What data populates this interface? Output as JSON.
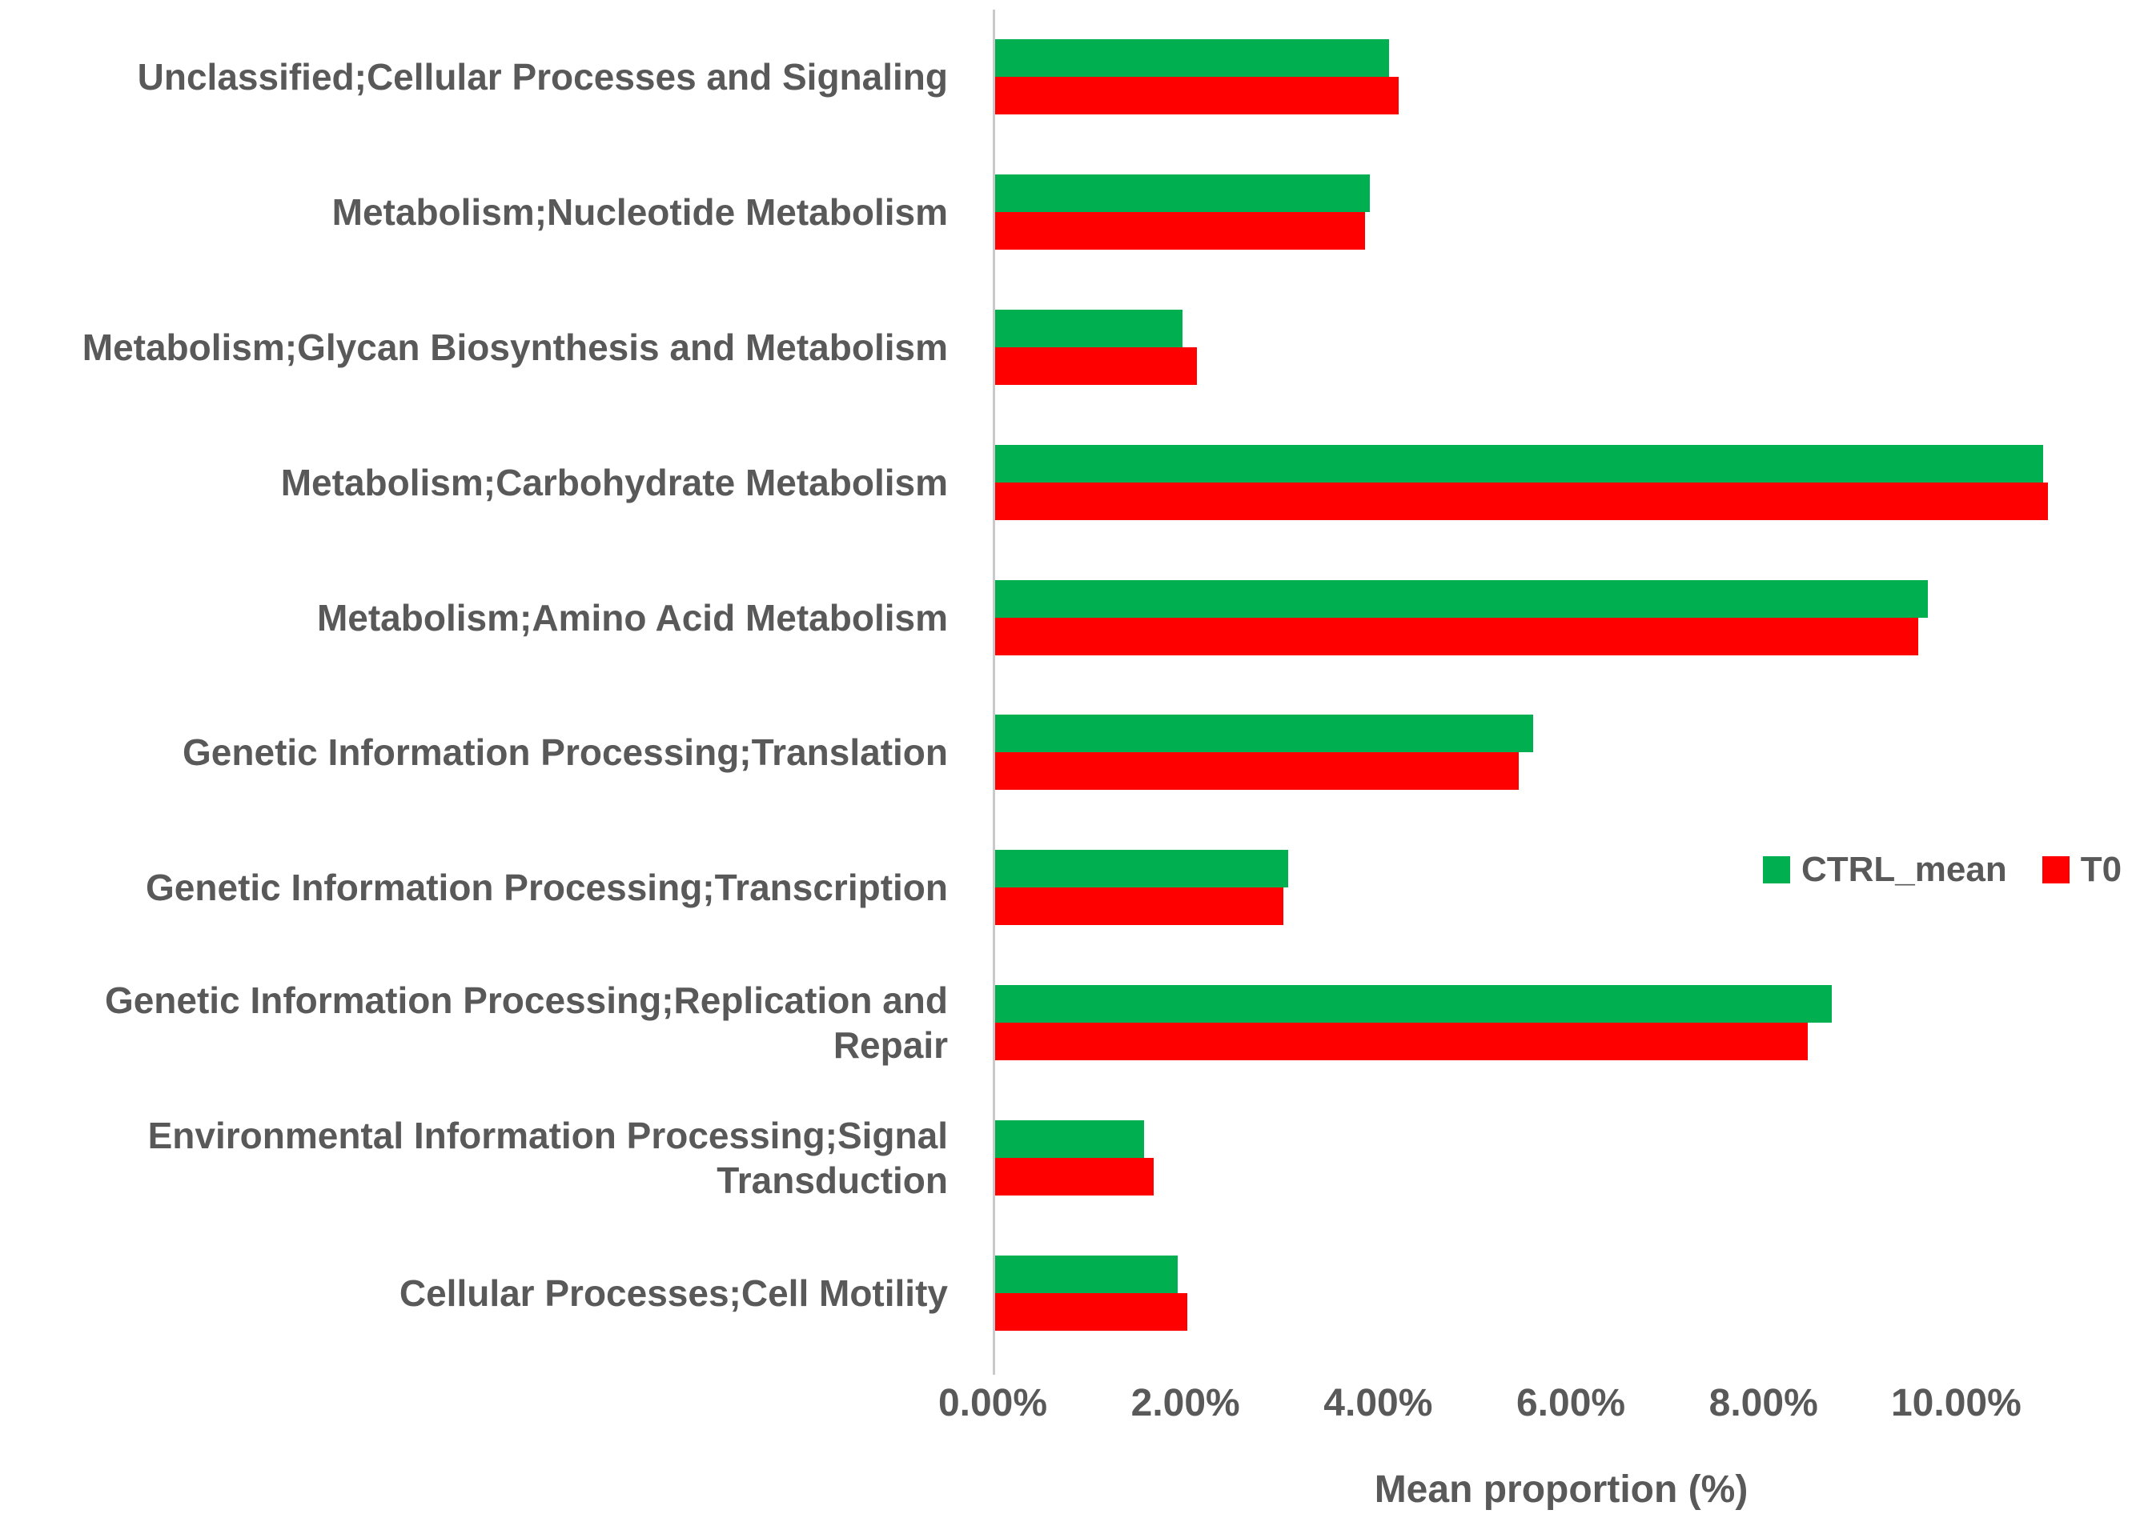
{
  "chart_data": {
    "type": "bar",
    "orientation": "horizontal",
    "title": "",
    "xlabel": "Mean proportion (%)",
    "ylabel": "",
    "grid": false,
    "legend_position": "right-middle",
    "xlim": [
      0,
      11.8
    ],
    "x_ticks": [
      "0.00%",
      "2.00%",
      "4.00%",
      "6.00%",
      "8.00%",
      "10.00%"
    ],
    "x_tick_values": [
      0,
      2,
      4,
      6,
      8,
      10
    ],
    "categories": [
      "Unclassified;Cellular Processes and Signaling",
      "Metabolism;Nucleotide Metabolism",
      "Metabolism;Glycan Biosynthesis and Metabolism",
      "Metabolism;Carbohydrate Metabolism",
      "Metabolism;Amino Acid Metabolism",
      "Genetic Information Processing;Translation",
      "Genetic Information Processing;Transcription",
      "Genetic Information Processing;Replication and Repair",
      "Environmental Information Processing;Signal Transduction",
      "Cellular Processes;Cell Motility"
    ],
    "series": [
      {
        "name": "CTRL_mean",
        "color": "#00B050",
        "values": [
          4.1,
          3.9,
          1.95,
          10.9,
          9.7,
          5.6,
          3.05,
          8.7,
          1.55,
          1.9
        ]
      },
      {
        "name": "T0",
        "color": "#FF0000",
        "values": [
          4.2,
          3.85,
          2.1,
          10.95,
          9.6,
          5.45,
          3.0,
          8.45,
          1.65,
          2.0
        ]
      }
    ]
  },
  "colors": {
    "label_text": "#595959",
    "axis_line": "#c9c9c9",
    "ctrl_mean": "#00B050",
    "t0": "#FF0000"
  }
}
